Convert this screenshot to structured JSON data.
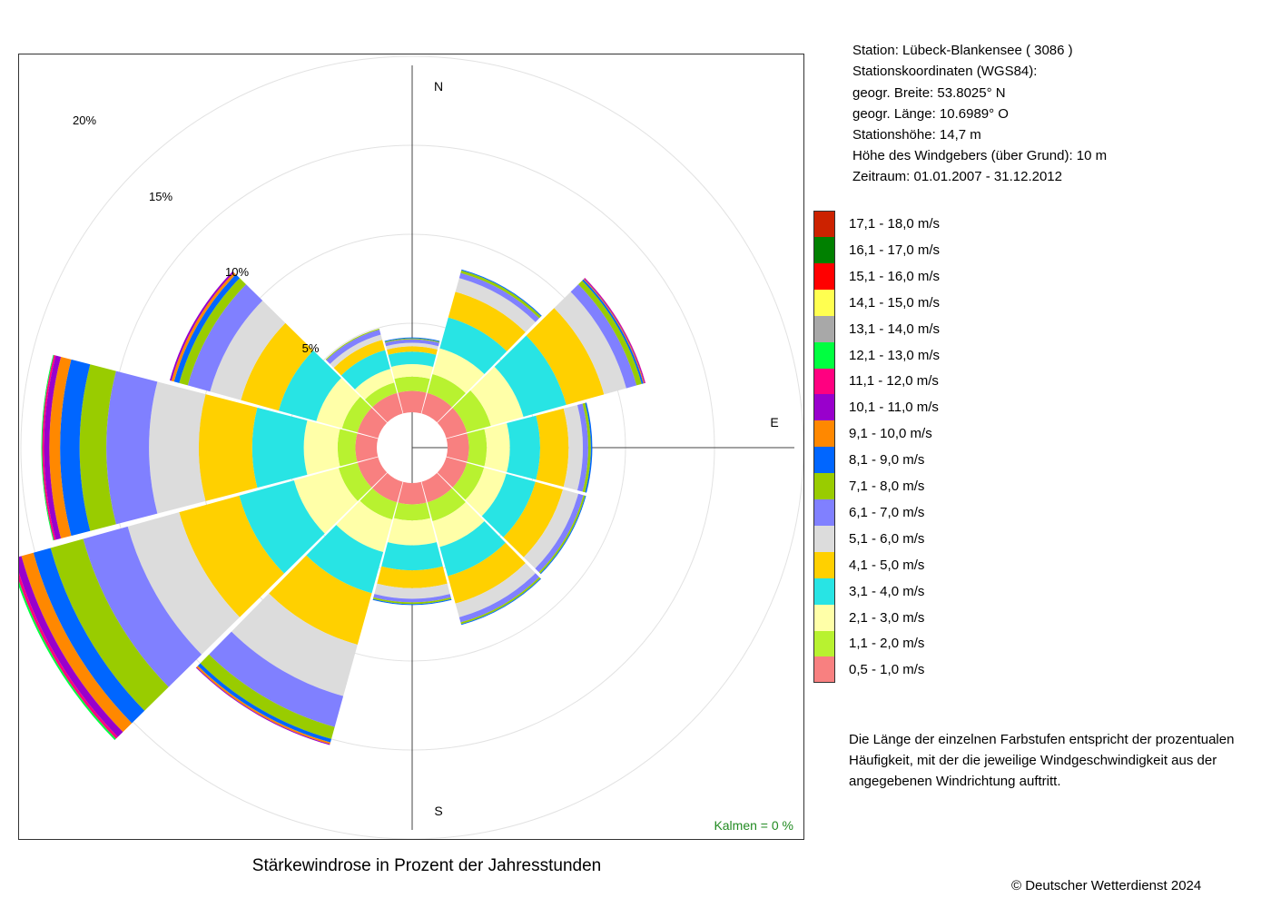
{
  "chart_data": {
    "type": "wind-rose",
    "title": "Stärkewindrose in Prozent der Jahresstunden",
    "compass_labels": {
      "north": "N",
      "east": "E",
      "south": "S"
    },
    "ring_labels": [
      "5%",
      "10%",
      "15%",
      "20%"
    ],
    "ring_values": [
      5,
      10,
      15,
      20
    ],
    "calms": "Kalmen  =  0 %",
    "sectors_deg": [
      0,
      30,
      60,
      90,
      120,
      150,
      180,
      210,
      240,
      270,
      300,
      330
    ],
    "speed_classes": [
      "0,5 - 1,0 m/s",
      "1,1 - 2,0 m/s",
      "2,1 - 3,0 m/s",
      "3,1 - 4,0 m/s",
      "4,1 - 5,0 m/s",
      "5,1 - 6,0 m/s",
      "6,1 - 7,0 m/s",
      "7,1 - 8,0 m/s",
      "8,1 - 9,0 m/s",
      "9,1 - 10,0 m/s",
      "10,1 - 11,0 m/s",
      "11,1 - 12,0 m/s",
      "12,1 - 13,0 m/s",
      "13,1 - 14,0 m/s",
      "14,1 - 15,0 m/s",
      "15,1 - 16,0 m/s",
      "16,1 - 17,0 m/s",
      "17,1 - 18,0 m/s"
    ],
    "colors": [
      "#F88080",
      "#B8F230",
      "#FFFFA8",
      "#28E4E4",
      "#FFD000",
      "#DCDCDC",
      "#8080FF",
      "#99CC00",
      "#0066FF",
      "#FF8800",
      "#9900CC",
      "#FF0080",
      "#00FF40",
      "#A8A8A8",
      "#FFFF50",
      "#FF0000",
      "#008000",
      "#CC2200"
    ],
    "series": [
      {
        "direction_deg": 0,
        "values": [
          1.2,
          0.8,
          0.7,
          0.7,
          0.3,
          0.2,
          0.2,
          0.05,
          0.05
        ]
      },
      {
        "direction_deg": 30,
        "values": [
          1.2,
          1.1,
          1.5,
          1.8,
          1.5,
          0.8,
          0.3,
          0.15,
          0.05
        ]
      },
      {
        "direction_deg": 60,
        "values": [
          1.2,
          1.4,
          1.9,
          2.5,
          2.2,
          1.3,
          0.6,
          0.3,
          0.1,
          0.05,
          0.05,
          0.02
        ]
      },
      {
        "direction_deg": 90,
        "values": [
          1.2,
          1.0,
          1.3,
          1.7,
          1.6,
          0.8,
          0.3,
          0.15,
          0.08
        ]
      },
      {
        "direction_deg": 120,
        "values": [
          1.2,
          1.0,
          1.3,
          1.7,
          1.6,
          0.9,
          0.3,
          0.1,
          0.05
        ]
      },
      {
        "direction_deg": 150,
        "values": [
          1.2,
          1.1,
          1.5,
          1.7,
          1.6,
          0.8,
          0.3,
          0.1,
          0.05
        ]
      },
      {
        "direction_deg": 180,
        "values": [
          1.2,
          0.9,
          1.4,
          1.4,
          1.0,
          0.6,
          0.2,
          0.1,
          0.05
        ]
      },
      {
        "direction_deg": 210,
        "values": [
          1.2,
          1.0,
          1.9,
          2.4,
          3.0,
          3.0,
          1.8,
          0.7,
          0.2,
          0.1,
          0.05
        ]
      },
      {
        "direction_deg": 240,
        "values": [
          1.2,
          1.1,
          2.6,
          3.2,
          3.5,
          3.0,
          2.6,
          1.9,
          1.0,
          0.7,
          0.4,
          0.15,
          0.1
        ]
      },
      {
        "direction_deg": 270,
        "values": [
          1.2,
          1.0,
          1.9,
          2.9,
          3.0,
          2.8,
          2.4,
          1.5,
          1.1,
          0.6,
          0.3,
          0.1,
          0.05
        ]
      },
      {
        "direction_deg": 300,
        "values": [
          1.2,
          0.9,
          1.5,
          2.2,
          2.2,
          1.8,
          1.3,
          0.5,
          0.3,
          0.15,
          0.1
        ]
      },
      {
        "direction_deg": 330,
        "values": [
          1.2,
          0.6,
          0.8,
          1.1,
          0.6,
          0.3,
          0.3,
          0.05
        ]
      }
    ]
  },
  "station_info": [
    "Station:  Lübeck-Blankensee  ( 3086 )",
    "Stationskoordinaten (WGS84):",
    "geogr. Breite: 53.8025° N",
    "geogr. Länge: 10.6989° O",
    "Stationshöhe: 14,7 m",
    "Höhe des Windgebers (über Grund): 10 m",
    "Zeitraum: 01.01.2007 - 31.12.2012"
  ],
  "note_lines": [
    "Die Länge der einzelnen Farbstufen entspricht der prozentualen",
    "Häufigkeit, mit der die jeweilige Windgeschwindigkeit aus der",
    "angegebenen Windrichtung auftritt."
  ],
  "copyright": "© Deutscher Wetterdienst  2024"
}
